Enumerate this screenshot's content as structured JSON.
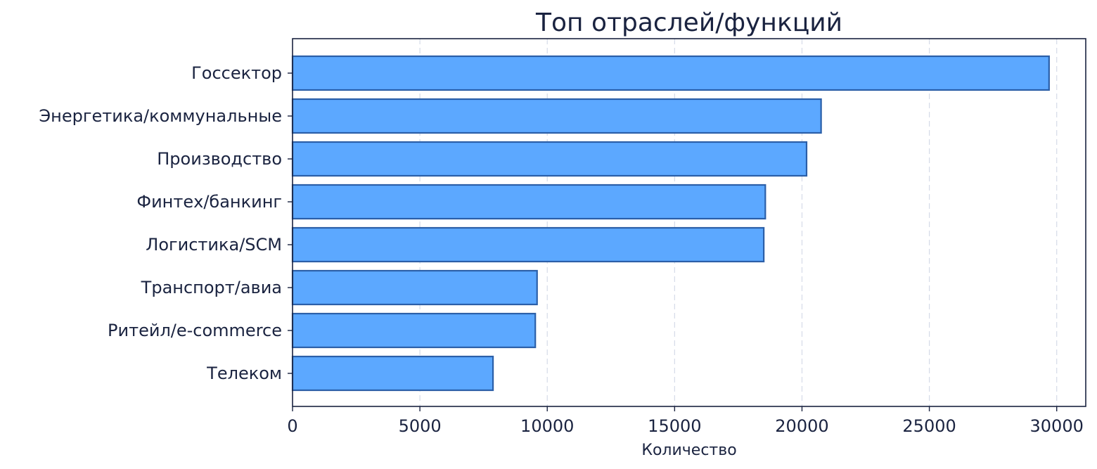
{
  "chart_data": {
    "type": "bar",
    "orientation": "horizontal",
    "title": "Топ отраслей/функций",
    "xlabel": "Количество",
    "ylabel": "",
    "categories": [
      "Госсектор",
      "Энергетика/коммунальные",
      "Производство",
      "Финтех/банкинг",
      "Логистика/SCM",
      "Транспорт/авиа",
      "Ритейл/e-commerce",
      "Телеком"
    ],
    "values": [
      29700,
      20750,
      20180,
      18560,
      18500,
      9600,
      9530,
      7870
    ],
    "xlim": [
      0,
      31140
    ],
    "xticks": [
      0,
      5000,
      10000,
      15000,
      20000,
      25000,
      30000
    ],
    "xtick_labels": [
      "0",
      "5000",
      "10000",
      "15000",
      "20000",
      "25000",
      "30000"
    ],
    "grid": "x, dashed",
    "colors": {
      "bar_fill": "#5ca8ff",
      "bar_edge": "#2b5fa8",
      "text": "#1a2340",
      "grid": "#d5dbe8"
    }
  }
}
